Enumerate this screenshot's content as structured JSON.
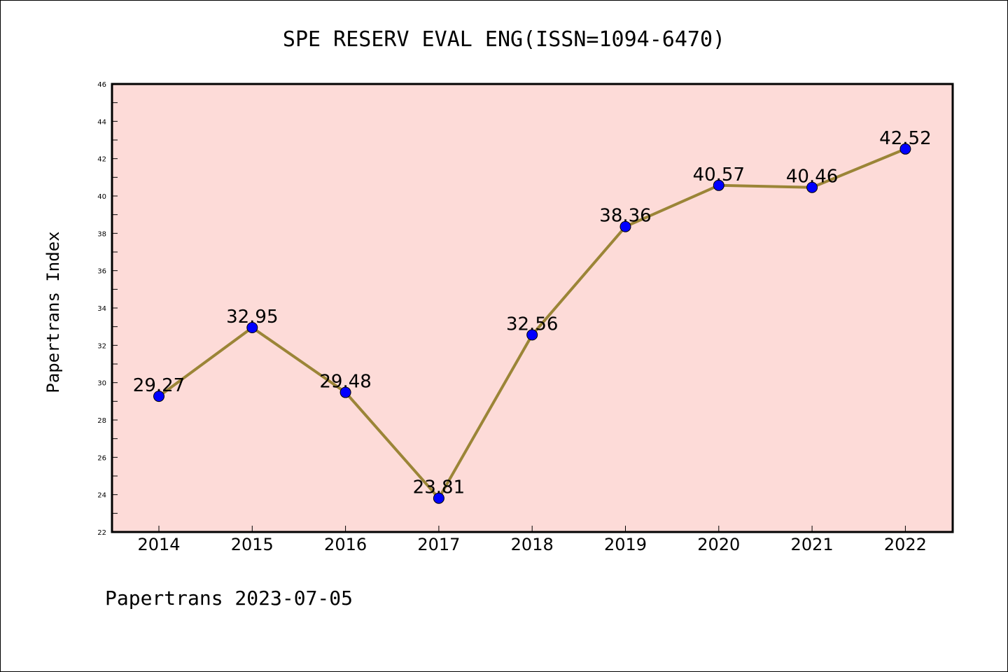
{
  "footer": "Papertrans 2023-07-05",
  "colors": {
    "plot_background": "#fddbd8",
    "line": "#9b8537",
    "marker": "#0000ff"
  },
  "chart_data": {
    "type": "line",
    "title": "SPE RESERV EVAL ENG(ISSN=1094-6470)",
    "xlabel": "",
    "ylabel": "Papertrans Index",
    "categories": [
      "2014",
      "2015",
      "2016",
      "2017",
      "2018",
      "2019",
      "2020",
      "2021",
      "2022"
    ],
    "values": [
      29.27,
      32.95,
      29.48,
      23.81,
      32.56,
      38.36,
      40.57,
      40.46,
      42.52
    ],
    "data_labels": [
      "29.27",
      "32.95",
      "29.48",
      "23.81",
      "32.56",
      "38.36",
      "40.57",
      "40.46",
      "42.52"
    ],
    "ylim": [
      22,
      46
    ],
    "yticks": [
      "22",
      "24",
      "26",
      "28",
      "30",
      "32",
      "34",
      "36",
      "38",
      "40",
      "42",
      "44",
      "46"
    ],
    "grid": false,
    "legend": "none"
  }
}
